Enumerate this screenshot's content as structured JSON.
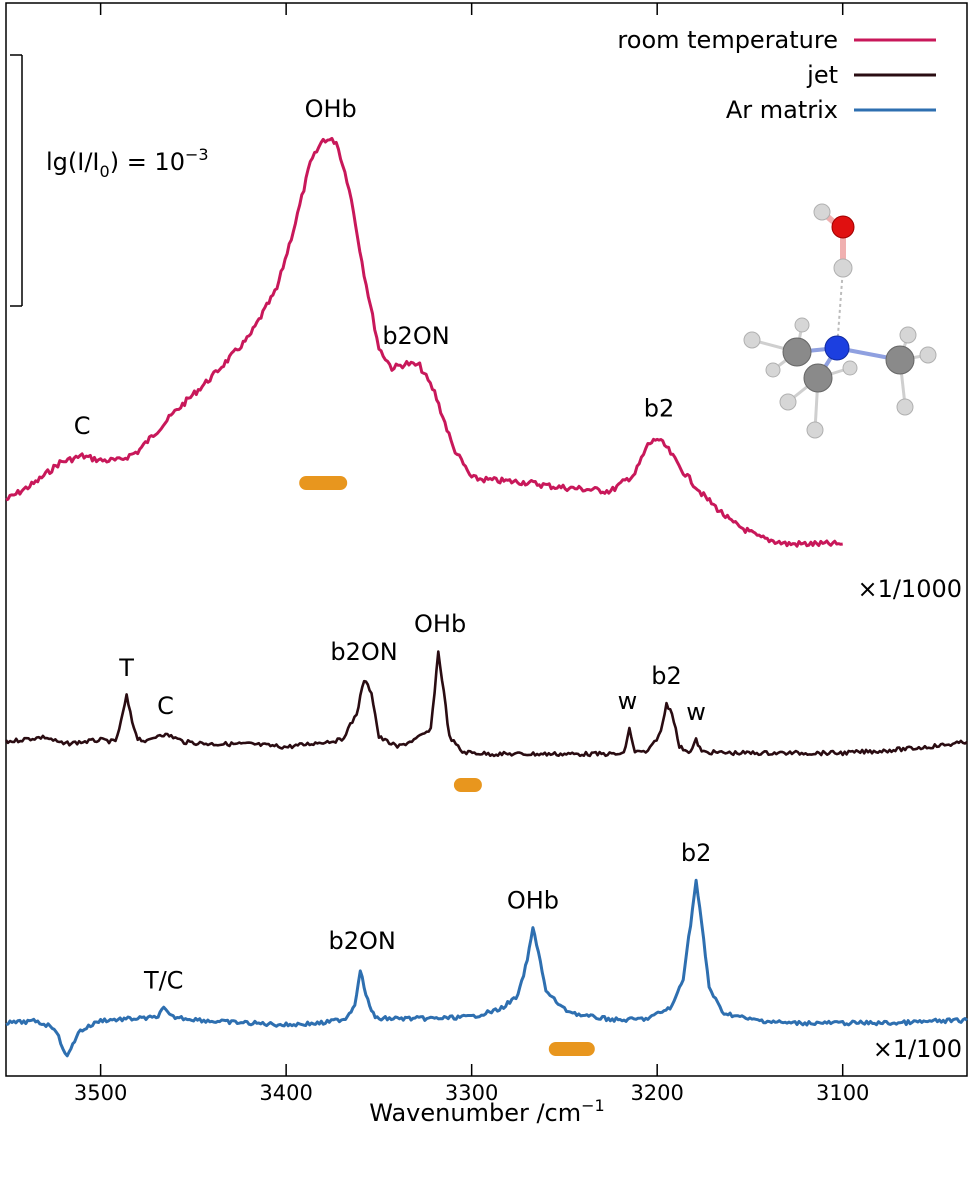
{
  "chart_data": {
    "type": "line",
    "xlabel": "Wavenumber /cm",
    "xlabel_exponent": "−1",
    "xlim": [
      3551,
      3033
    ],
    "x_ticks": [
      "3500",
      "3400",
      "3300",
      "3200",
      "3100"
    ],
    "x_tick_values": [
      3500,
      3400,
      3300,
      3200,
      3100
    ],
    "scale_bar": {
      "label_prefix": "lg(I/I",
      "label_sub": "0",
      "label_mid": ") = 10",
      "label_sup": "−3",
      "length_in_lgI": 0.001
    },
    "legend": {
      "placement": "top-right",
      "entries": [
        {
          "name": "room temperature",
          "color": "#c8185a"
        },
        {
          "name": "jet",
          "color": "#2a0c12"
        },
        {
          "name": "Ar matrix",
          "color": "#2e6fb0"
        }
      ]
    },
    "series": [
      {
        "name": "room temperature",
        "color": "#c8185a",
        "scale_label": "×1/1000",
        "points": [
          [
            3551,
            0.0
          ],
          [
            3535,
            0.08
          ],
          [
            3522,
            0.17
          ],
          [
            3510,
            0.2
          ],
          [
            3500,
            0.18
          ],
          [
            3490,
            0.18
          ],
          [
            3480,
            0.22
          ],
          [
            3460,
            0.4
          ],
          [
            3440,
            0.56
          ],
          [
            3420,
            0.74
          ],
          [
            3405,
            0.96
          ],
          [
            3395,
            1.26
          ],
          [
            3387,
            1.53
          ],
          [
            3380,
            1.64
          ],
          [
            3373,
            1.63
          ],
          [
            3366,
            1.42
          ],
          [
            3358,
            1.03
          ],
          [
            3350,
            0.69
          ],
          [
            3343,
            0.6
          ],
          [
            3335,
            0.62
          ],
          [
            3328,
            0.61
          ],
          [
            3320,
            0.49
          ],
          [
            3310,
            0.24
          ],
          [
            3300,
            0.1
          ],
          [
            3290,
            0.09
          ],
          [
            3270,
            0.08
          ],
          [
            3255,
            0.06
          ],
          [
            3240,
            0.05
          ],
          [
            3225,
            0.04
          ],
          [
            3212,
            0.12
          ],
          [
            3205,
            0.25
          ],
          [
            3200,
            0.28
          ],
          [
            3195,
            0.24
          ],
          [
            3187,
            0.14
          ],
          [
            3175,
            0.02
          ],
          [
            3160,
            -0.1
          ],
          [
            3145,
            -0.17
          ],
          [
            3130,
            -0.2
          ],
          [
            3115,
            -0.2
          ],
          [
            3100,
            -0.2
          ]
        ],
        "peak_labels": [
          {
            "text": "C",
            "x": 3510
          },
          {
            "text": "OHb",
            "x": 3376
          },
          {
            "text": "b2ON",
            "x": 3330
          },
          {
            "text": "b2",
            "x": 3199
          }
        ],
        "bar_marker_center": 3380
      },
      {
        "name": "jet",
        "color": "#2a0c12",
        "points": [
          [
            3551,
            0.0
          ],
          [
            3540,
            0.03
          ],
          [
            3530,
            0.05
          ],
          [
            3520,
            -0.02
          ],
          [
            3500,
            0.02
          ],
          [
            3492,
            0.0
          ],
          [
            3489,
            0.2
          ],
          [
            3486,
            0.46
          ],
          [
            3483,
            0.2
          ],
          [
            3480,
            0.04
          ],
          [
            3475,
            0.0
          ],
          [
            3468,
            0.08
          ],
          [
            3462,
            0.06
          ],
          [
            3455,
            0.0
          ],
          [
            3440,
            -0.02
          ],
          [
            3420,
            -0.02
          ],
          [
            3400,
            -0.05
          ],
          [
            3380,
            0.0
          ],
          [
            3370,
            0.02
          ],
          [
            3362,
            0.28
          ],
          [
            3358,
            0.62
          ],
          [
            3354,
            0.5
          ],
          [
            3350,
            0.05
          ],
          [
            3340,
            -0.05
          ],
          [
            3330,
            0.03
          ],
          [
            3322,
            0.12
          ],
          [
            3318,
            0.9
          ],
          [
            3315,
            0.5
          ],
          [
            3312,
            0.05
          ],
          [
            3305,
            -0.1
          ],
          [
            3290,
            -0.12
          ],
          [
            3270,
            -0.12
          ],
          [
            3250,
            -0.12
          ],
          [
            3230,
            -0.12
          ],
          [
            3218,
            -0.12
          ],
          [
            3215,
            0.13
          ],
          [
            3212,
            -0.1
          ],
          [
            3205,
            -0.1
          ],
          [
            3198,
            0.1
          ],
          [
            3195,
            0.38
          ],
          [
            3192,
            0.3
          ],
          [
            3188,
            -0.05
          ],
          [
            3182,
            -0.1
          ],
          [
            3179,
            0.02
          ],
          [
            3176,
            -0.1
          ],
          [
            3160,
            -0.11
          ],
          [
            3140,
            -0.11
          ],
          [
            3120,
            -0.11
          ],
          [
            3100,
            -0.11
          ],
          [
            3080,
            -0.09
          ],
          [
            3060,
            -0.06
          ],
          [
            3045,
            -0.03
          ],
          [
            3033,
            0.0
          ]
        ],
        "peak_labels": [
          {
            "text": "T",
            "x": 3486
          },
          {
            "text": "C",
            "x": 3465
          },
          {
            "text": "b2ON",
            "x": 3358
          },
          {
            "text": "OHb",
            "x": 3317
          },
          {
            "text": "w",
            "x": 3216
          },
          {
            "text": "b2",
            "x": 3195
          },
          {
            "text": "w",
            "x": 3179
          }
        ],
        "bar_marker_center": 3302
      },
      {
        "name": "Ar matrix",
        "color": "#2e6fb0",
        "scale_label": "×1/100",
        "points": [
          [
            3551,
            0.0
          ],
          [
            3535,
            0.02
          ],
          [
            3525,
            -0.05
          ],
          [
            3518,
            -0.38
          ],
          [
            3512,
            -0.1
          ],
          [
            3500,
            0.03
          ],
          [
            3480,
            0.05
          ],
          [
            3470,
            0.06
          ],
          [
            3466,
            0.16
          ],
          [
            3462,
            0.07
          ],
          [
            3440,
            0.02
          ],
          [
            3420,
            0.0
          ],
          [
            3400,
            -0.02
          ],
          [
            3380,
            0.0
          ],
          [
            3368,
            0.05
          ],
          [
            3363,
            0.2
          ],
          [
            3360,
            0.6
          ],
          [
            3357,
            0.3
          ],
          [
            3352,
            0.05
          ],
          [
            3340,
            0.05
          ],
          [
            3320,
            0.05
          ],
          [
            3300,
            0.07
          ],
          [
            3285,
            0.15
          ],
          [
            3275,
            0.3
          ],
          [
            3270,
            0.7
          ],
          [
            3267,
            1.05
          ],
          [
            3264,
            0.8
          ],
          [
            3260,
            0.35
          ],
          [
            3250,
            0.15
          ],
          [
            3240,
            0.08
          ],
          [
            3220,
            0.03
          ],
          [
            3205,
            0.05
          ],
          [
            3192,
            0.18
          ],
          [
            3186,
            0.5
          ],
          [
            3182,
            1.1
          ],
          [
            3179,
            1.58
          ],
          [
            3176,
            1.1
          ],
          [
            3172,
            0.4
          ],
          [
            3165,
            0.12
          ],
          [
            3150,
            0.04
          ],
          [
            3130,
            0.0
          ],
          [
            3100,
            0.0
          ],
          [
            3070,
            0.0
          ],
          [
            3050,
            0.02
          ],
          [
            3033,
            0.03
          ]
        ],
        "peak_labels": [
          {
            "text": "T/C",
            "x": 3466
          },
          {
            "text": "b2ON",
            "x": 3359
          },
          {
            "text": "OHb",
            "x": 3267
          },
          {
            "text": "b2",
            "x": 3179
          }
        ],
        "bar_marker_center": 3246
      }
    ],
    "bar_marker_color": "#e8961e",
    "molecule_colors": {
      "oxygen": "#e01010",
      "nitrogen": "#1c3fe0",
      "carbon": "#8a8a8a",
      "hydrogen": "#d6d6d6"
    }
  }
}
